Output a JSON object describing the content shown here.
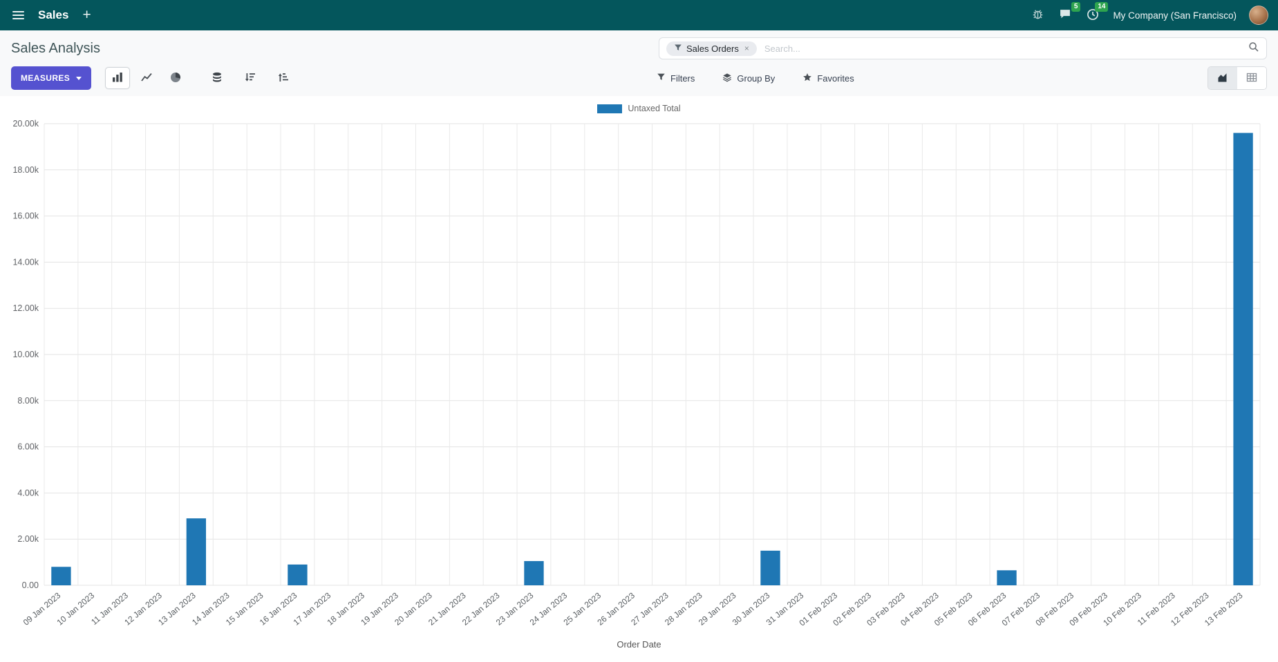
{
  "navbar": {
    "app_name": "Sales",
    "plus_label": "+",
    "systray": {
      "messages_count": "5",
      "activities_count": "14",
      "company": "My Company (San Francisco)"
    }
  },
  "control_panel": {
    "title": "Sales Analysis",
    "search": {
      "facet_label": "Sales Orders",
      "facet_remove": "×",
      "placeholder": "Search..."
    },
    "measures_label": "MEASURES",
    "filters_label": "Filters",
    "group_by_label": "Group By",
    "favorites_label": "Favorites"
  },
  "chart_data": {
    "type": "bar",
    "title": "",
    "categories": [
      "09 Jan 2023",
      "10 Jan 2023",
      "11 Jan 2023",
      "12 Jan 2023",
      "13 Jan 2023",
      "14 Jan 2023",
      "15 Jan 2023",
      "16 Jan 2023",
      "17 Jan 2023",
      "18 Jan 2023",
      "19 Jan 2023",
      "20 Jan 2023",
      "21 Jan 2023",
      "22 Jan 2023",
      "23 Jan 2023",
      "24 Jan 2023",
      "25 Jan 2023",
      "26 Jan 2023",
      "27 Jan 2023",
      "28 Jan 2023",
      "29 Jan 2023",
      "30 Jan 2023",
      "31 Jan 2023",
      "01 Feb 2023",
      "02 Feb 2023",
      "03 Feb 2023",
      "04 Feb 2023",
      "05 Feb 2023",
      "06 Feb 2023",
      "07 Feb 2023",
      "08 Feb 2023",
      "09 Feb 2023",
      "10 Feb 2023",
      "11 Feb 2023",
      "12 Feb 2023",
      "13 Feb 2023"
    ],
    "series": [
      {
        "name": "Untaxed Total",
        "color": "#1f77b4",
        "values": [
          800,
          0,
          0,
          0,
          2900,
          0,
          0,
          900,
          0,
          0,
          0,
          0,
          0,
          0,
          1050,
          0,
          0,
          0,
          0,
          0,
          0,
          1500,
          0,
          0,
          0,
          0,
          0,
          0,
          650,
          0,
          0,
          0,
          0,
          0,
          0,
          19600
        ]
      }
    ],
    "xlabel": "Order Date",
    "ylabel": "",
    "ylim": [
      0,
      20000
    ],
    "ytick_step": 2000,
    "ytick_labels": [
      "0.00",
      "2.00k",
      "4.00k",
      "6.00k",
      "8.00k",
      "10.00k",
      "12.00k",
      "14.00k",
      "16.00k",
      "18.00k",
      "20.00k"
    ],
    "grid": true,
    "legend_position": "top-center"
  },
  "colors": {
    "navbar_bg": "#04565c",
    "primary_button": "#5552d0",
    "badge_green": "#2EA44F",
    "bar_blue": "#1f77b4"
  }
}
